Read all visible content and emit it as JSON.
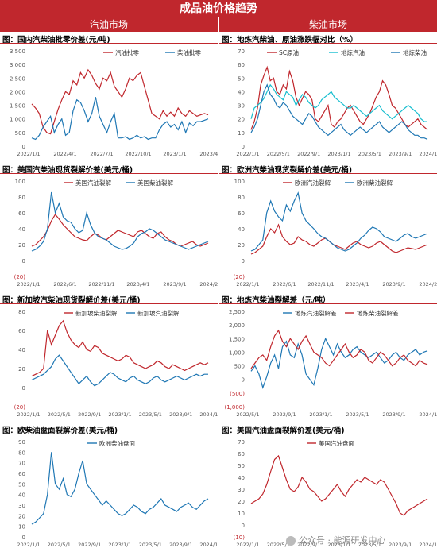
{
  "header": {
    "title": "成品油价格趋势",
    "left_column": "汽油市场",
    "right_column": "柴油市场"
  },
  "watermark": "公众号 · 能源研发中心",
  "chart_data": [
    {
      "type": "line",
      "title": "图：国内汽柴油批零价差(元/吨)",
      "yticks": [
        "3,500",
        "3,000",
        "2,500",
        "2,000",
        "1,500",
        "1,000",
        "500",
        "0"
      ],
      "ylim": [
        0,
        3500
      ],
      "xticks": [
        "2022/1/1",
        "2022/4/1",
        "2022/7/1",
        "2022/10/1",
        "2023/1/1",
        "2023/4/1"
      ],
      "legend_pos": "top-right",
      "series": [
        {
          "name": "汽油批零",
          "color": "#c0272d",
          "values": [
            1550,
            1400,
            1200,
            700,
            500,
            450,
            900,
            1350,
            1700,
            2000,
            1900,
            2400,
            2250,
            2700,
            2500,
            2800,
            2600,
            2300,
            2100,
            2500,
            2400,
            2700,
            2200,
            2000,
            1800,
            2100,
            2500,
            2400,
            2600,
            2700,
            2200,
            1700,
            1200,
            1100,
            1000,
            1300,
            1100,
            1250,
            1100,
            1400,
            1200,
            1100,
            1300,
            1200,
            1100,
            1150,
            1200,
            1150
          ]
        },
        {
          "name": "柴油批零",
          "color": "#1f77b4",
          "values": [
            300,
            250,
            400,
            700,
            900,
            1100,
            500,
            800,
            1000,
            400,
            500,
            1300,
            1700,
            1600,
            1300,
            900,
            1200,
            1800,
            1100,
            800,
            500,
            900,
            1200,
            300,
            300,
            350,
            250,
            300,
            400,
            300,
            350,
            250,
            300,
            300,
            600,
            800,
            900,
            700,
            800,
            600,
            900,
            500,
            850,
            750,
            900,
            900,
            950,
            1000
          ]
        }
      ]
    },
    {
      "type": "line",
      "title": "图：地炼汽柴油、原油涨跌幅对比（%）",
      "yticks": [
        "70",
        "60",
        "50",
        "40",
        "30",
        "20",
        "10",
        "0"
      ],
      "ylim": [
        0,
        70
      ],
      "xticks": [
        "2022/1/1",
        "2022/5/1",
        "2022/9/1",
        "2023/1/1",
        "2023/5/1",
        "2023/9/1",
        "2024/1/1"
      ],
      "legend_pos": "top",
      "series": [
        {
          "name": "SC原油",
          "color": "#c0272d",
          "values": [
            12,
            18,
            28,
            45,
            52,
            58,
            48,
            50,
            40,
            38,
            45,
            42,
            55,
            48,
            36,
            30,
            35,
            40,
            38,
            34,
            20,
            18,
            22,
            26,
            30,
            16,
            14,
            18,
            20,
            24,
            28,
            30,
            26,
            22,
            18,
            16,
            20,
            24,
            30,
            36,
            40,
            48,
            45,
            38,
            30,
            28,
            24,
            20,
            16,
            14,
            16,
            18,
            20,
            16,
            14,
            12
          ]
        },
        {
          "name": "地炼汽油",
          "color": "#17becf",
          "values": [
            20,
            28,
            30,
            32,
            35,
            40,
            45,
            42,
            38,
            36,
            34,
            40,
            38,
            36,
            30,
            34,
            38,
            36,
            32,
            30,
            28,
            30,
            34,
            36,
            38,
            40,
            36,
            34,
            32,
            30,
            28,
            28,
            30,
            28,
            26,
            24,
            22,
            24,
            26,
            28,
            30,
            26,
            24,
            22,
            20,
            22,
            24,
            26,
            28,
            30,
            28,
            26,
            24,
            20,
            18,
            18
          ]
        },
        {
          "name": "地炼柴油",
          "color": "#1f77b4",
          "values": [
            10,
            14,
            20,
            30,
            40,
            45,
            38,
            35,
            30,
            28,
            32,
            30,
            26,
            22,
            20,
            18,
            16,
            20,
            24,
            22,
            18,
            14,
            12,
            10,
            8,
            10,
            12,
            14,
            16,
            12,
            10,
            8,
            10,
            12,
            14,
            12,
            10,
            12,
            14,
            16,
            18,
            14,
            12,
            10,
            12,
            14,
            16,
            18,
            16,
            12,
            10,
            8,
            8,
            6,
            6,
            5
          ]
        }
      ]
    },
    {
      "type": "line",
      "title": "图：美国汽柴油现货裂解价差(美元/桶)",
      "yticks": [
        "100",
        "80",
        "60",
        "40",
        "20",
        "0",
        "(20)"
      ],
      "ylim": [
        -20,
        100
      ],
      "xticks": [
        "2022/1/1",
        "2022/6/1",
        "2022/11/1",
        "2023/4/1",
        "2023/9/1",
        "2024/2/1"
      ],
      "legend_pos": "top",
      "series": [
        {
          "name": "美国汽油裂解",
          "color": "#c0272d",
          "values": [
            18,
            20,
            25,
            30,
            38,
            50,
            58,
            52,
            45,
            40,
            35,
            30,
            28,
            26,
            25,
            30,
            34,
            32,
            28,
            26,
            30,
            34,
            38,
            36,
            34,
            32,
            30,
            36,
            38,
            34,
            30,
            28,
            34,
            36,
            30,
            26,
            24,
            20,
            18,
            20,
            22,
            24,
            20,
            18,
            20,
            22
          ]
        },
        {
          "name": "美国柴油裂解",
          "color": "#1f77b4",
          "values": [
            12,
            14,
            18,
            24,
            40,
            86,
            60,
            72,
            55,
            50,
            48,
            40,
            35,
            38,
            60,
            45,
            35,
            30,
            28,
            26,
            22,
            18,
            16,
            14,
            15,
            18,
            22,
            30,
            34,
            36,
            40,
            38,
            34,
            30,
            26,
            24,
            22,
            20,
            18,
            16,
            14,
            16,
            18,
            20,
            22,
            24
          ]
        }
      ]
    },
    {
      "type": "line",
      "title": "图：欧洲汽柴油现货裂解价差(美元/桶)",
      "yticks": [
        "100",
        "80",
        "60",
        "40",
        "20",
        "0",
        "(20)"
      ],
      "ylim": [
        -20,
        100
      ],
      "xticks": [
        "2022/1/1",
        "2022/6/1",
        "2022/11/1",
        "2023/4/1",
        "2023/9/1",
        "2024/2/1"
      ],
      "legend_pos": "top",
      "series": [
        {
          "name": "欧洲汽油裂解",
          "color": "#c0272d",
          "values": [
            8,
            10,
            14,
            18,
            30,
            40,
            35,
            45,
            30,
            24,
            20,
            22,
            30,
            26,
            24,
            20,
            18,
            22,
            26,
            28,
            24,
            20,
            18,
            16,
            14,
            18,
            22,
            24,
            20,
            18,
            16,
            18,
            22,
            24,
            20,
            16,
            12,
            10,
            12,
            14,
            16,
            15,
            14,
            16,
            18,
            20
          ]
        },
        {
          "name": "欧洲柴油裂解",
          "color": "#1f77b4",
          "values": [
            12,
            14,
            20,
            26,
            60,
            75,
            62,
            55,
            50,
            70,
            62,
            75,
            85,
            60,
            50,
            45,
            40,
            34,
            30,
            28,
            24,
            20,
            16,
            14,
            12,
            14,
            18,
            22,
            28,
            32,
            38,
            42,
            40,
            36,
            30,
            28,
            26,
            24,
            28,
            32,
            34,
            30,
            28,
            30,
            32,
            34
          ]
        }
      ]
    },
    {
      "type": "line",
      "title": "图：新加坡汽柴油现货裂解价差(美元/桶)",
      "yticks": [
        "80",
        "60",
        "40",
        "20",
        "0",
        "(20)"
      ],
      "ylim": [
        -20,
        80
      ],
      "xticks": [
        "2022/1/1",
        "2022/5/1",
        "2022/9/1",
        "2023/1/1",
        "2023/5/1",
        "2023/9/1",
        "2024/1/1"
      ],
      "legend_pos": "top",
      "series": [
        {
          "name": "新加坡柴油裂解",
          "color": "#c0272d",
          "values": [
            12,
            14,
            16,
            20,
            60,
            45,
            55,
            65,
            70,
            58,
            50,
            45,
            42,
            48,
            40,
            38,
            44,
            42,
            36,
            34,
            32,
            30,
            28,
            30,
            34,
            32,
            26,
            24,
            22,
            20,
            22,
            24,
            28,
            26,
            22,
            20,
            24,
            22,
            20,
            18,
            20,
            22,
            24,
            26,
            24,
            26
          ]
        },
        {
          "name": "新加坡汽油裂解",
          "color": "#1f77b4",
          "values": [
            8,
            10,
            12,
            14,
            18,
            22,
            30,
            34,
            28,
            22,
            16,
            10,
            4,
            8,
            12,
            6,
            2,
            4,
            8,
            12,
            16,
            14,
            10,
            8,
            6,
            10,
            12,
            8,
            6,
            4,
            6,
            10,
            12,
            8,
            6,
            8,
            10,
            12,
            10,
            8,
            10,
            12,
            14,
            12,
            14,
            14
          ]
        }
      ]
    },
    {
      "type": "line",
      "title": "图：地炼汽柴油裂解差（元/吨）",
      "yticks": [
        "2,500",
        "2,000",
        "1,500",
        "1,000",
        "500",
        "0",
        "(500)",
        "(1,000)"
      ],
      "ylim": [
        -1000,
        2500
      ],
      "xticks": [
        "2022/5/1",
        "2022/9/1",
        "2023/1/1",
        "2023/5/1",
        "2023/9/1",
        "2024/1/1"
      ],
      "legend_pos": "top",
      "series": [
        {
          "name": "地炼汽油裂解差",
          "color": "#1f77b4",
          "values": [
            300,
            500,
            200,
            -300,
            100,
            600,
            900,
            400,
            1200,
            1400,
            900,
            800,
            1300,
            900,
            200,
            0,
            -200,
            400,
            1100,
            1500,
            1200,
            900,
            1300,
            1000,
            800,
            900,
            1100,
            1200,
            1000,
            900,
            800,
            900,
            1000,
            800,
            600,
            700,
            900,
            1000,
            800,
            700,
            900,
            1000,
            1100,
            900,
            1000,
            1050
          ]
        },
        {
          "name": "地炼柴油裂解差",
          "color": "#c0272d",
          "values": [
            400,
            600,
            800,
            900,
            700,
            1200,
            1600,
            1800,
            1400,
            1200,
            1500,
            1300,
            1100,
            1400,
            1600,
            1300,
            1000,
            900,
            800,
            600,
            500,
            700,
            900,
            1100,
            1300,
            1000,
            800,
            900,
            1100,
            1000,
            700,
            600,
            800,
            1000,
            900,
            700,
            500,
            600,
            800,
            900,
            700,
            600,
            500,
            700,
            600,
            550
          ]
        }
      ]
    },
    {
      "type": "line",
      "title": "图：欧柴油盘面裂解价差(美元/桶)",
      "yticks": [
        "90",
        "80",
        "70",
        "60",
        "50",
        "40",
        "30",
        "20",
        "10",
        "0"
      ],
      "ylim": [
        0,
        90
      ],
      "xticks": [
        "2022/1/1",
        "2022/5/1",
        "2022/9/1",
        "2023/1/1",
        "2023/5/1",
        "2023/9/1",
        "2024/1/1"
      ],
      "legend_pos": "top",
      "series": [
        {
          "name": "欧洲柴油盘面",
          "color": "#1f77b4",
          "values": [
            12,
            14,
            18,
            22,
            40,
            80,
            50,
            45,
            55,
            40,
            38,
            45,
            60,
            72,
            50,
            45,
            40,
            35,
            30,
            34,
            30,
            26,
            22,
            20,
            22,
            26,
            30,
            28,
            24,
            22,
            26,
            28,
            32,
            36,
            30,
            28,
            26,
            24,
            28,
            30,
            32,
            28,
            26,
            30,
            34,
            36
          ]
        }
      ]
    },
    {
      "type": "line",
      "title": "图：美国汽油盘面裂解价差(美元/桶)",
      "yticks": [
        "70",
        "60",
        "50",
        "40",
        "30",
        "20",
        "10",
        "0",
        "(10)"
      ],
      "ylim": [
        -10,
        70
      ],
      "xticks": [
        "2022/1/1",
        "2022/5/1",
        "2022/9/1",
        "2023/1/1",
        "2023/5/1",
        "2023/9/1",
        "2024/1/1"
      ],
      "legend_pos": "top",
      "series": [
        {
          "name": "美国汽油盘面",
          "color": "#c0272d",
          "values": [
            18,
            20,
            22,
            26,
            34,
            45,
            55,
            58,
            48,
            38,
            30,
            28,
            32,
            40,
            36,
            30,
            28,
            24,
            20,
            22,
            26,
            30,
            34,
            28,
            24,
            30,
            34,
            38,
            36,
            40,
            38,
            36,
            34,
            38,
            36,
            30,
            24,
            18,
            10,
            8,
            12,
            14,
            16,
            18,
            20,
            22
          ]
        }
      ]
    }
  ]
}
